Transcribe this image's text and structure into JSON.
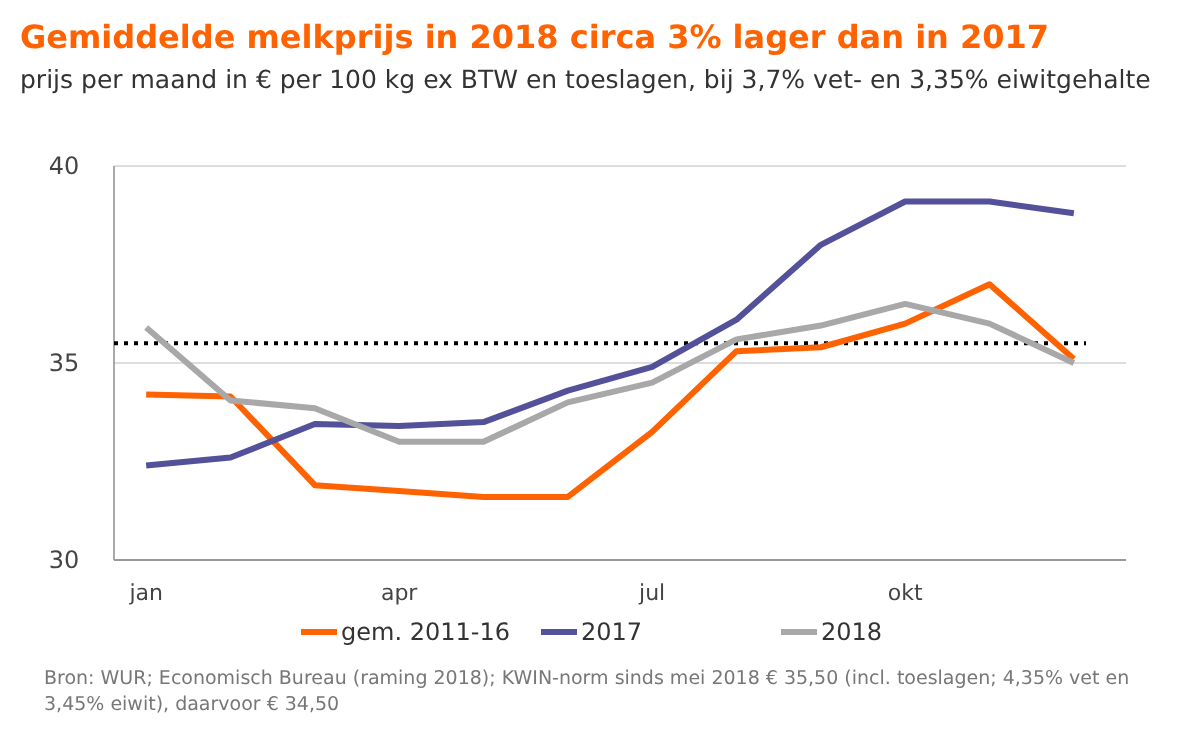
{
  "chart_data": {
    "type": "line",
    "title": "Gemiddelde melkprijs in 2018 circa 3% lager dan in 2017",
    "subtitle": "prijs per maand in € per 100 kg ex BTW en toeslagen, bij 3,7% vet- en 3,35% eiwitgehalte",
    "categories": [
      "jan",
      null,
      null,
      "apr",
      null,
      null,
      "jul",
      null,
      null,
      "okt",
      null,
      null
    ],
    "series": [
      {
        "name": "gem. 2011-16",
        "color": "#ff6200",
        "values": [
          34.2,
          34.15,
          31.9,
          31.75,
          31.6,
          31.6,
          33.25,
          35.3,
          35.4,
          36.0,
          37.0,
          35.1
        ]
      },
      {
        "name": "2017",
        "color": "#525199",
        "values": [
          32.4,
          32.6,
          33.45,
          33.4,
          33.5,
          34.3,
          34.9,
          36.1,
          38.0,
          39.1,
          39.1,
          38.8
        ]
      },
      {
        "name": "2018",
        "color": "#a8a8a8",
        "values": [
          35.9,
          34.05,
          33.85,
          33.0,
          33.0,
          34.0,
          34.5,
          35.6,
          35.95,
          36.5,
          36.0,
          35.0
        ]
      }
    ],
    "ylim": [
      30,
      40
    ],
    "yticks": [
      30,
      35,
      40
    ],
    "grid": "y",
    "legend": "bottom",
    "marker": "none",
    "line_style": "solid",
    "ref_lines": [
      {
        "axis": "y",
        "value": 35.5,
        "label": null,
        "color": "#000000",
        "line_style": "dotted"
      }
    ],
    "annotations": [
      "Bron: WUR; Economisch Bureau (raming 2018); KWIN-norm sinds mei 2018 € 35,50 (incl. toeslagen; 4,35% vet en 3,45% eiwit), daarvoor € 34,50"
    ]
  }
}
